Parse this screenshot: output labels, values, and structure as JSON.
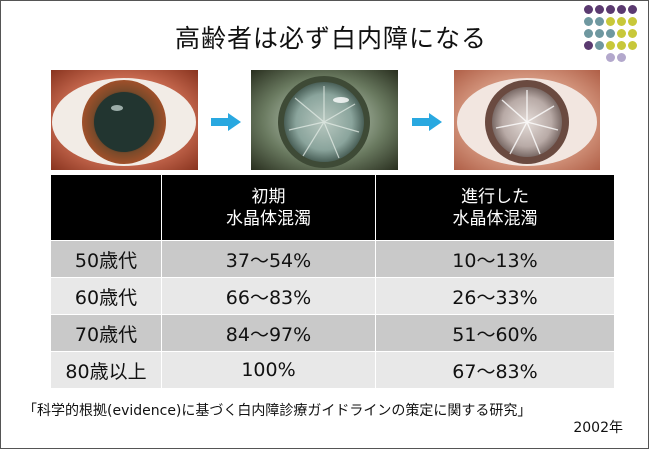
{
  "title": "高齢者は必ず白内障になる",
  "images": [
    {
      "name": "normal-eye-photo",
      "color": "#b5462a"
    },
    {
      "name": "early-cataract-eye-photo",
      "color": "#9ab0a8"
    },
    {
      "name": "advanced-cataract-eye-photo",
      "color": "#d0b8b0"
    }
  ],
  "arrow_color": "#29a8e0",
  "decor_dots": {
    "rows": [
      [
        "#5b3a70",
        "#5b3a70",
        "#5b3a70",
        "#5b3a70",
        "#5b3a70"
      ],
      [
        "#6f98a0",
        "#6f98a0",
        "#c8c83a",
        "#c8c83a",
        "#c8c83a"
      ],
      [
        "#6f98a0",
        "#6f98a0",
        "#6f98a0",
        "#c8c83a",
        "#c8c83a"
      ],
      [
        "#5b3a70",
        "#6f98a0",
        "#c8c83a",
        "#c8c83a",
        "#c8c83a"
      ],
      [
        "",
        "",
        "#b3a8cc",
        "#b3a8cc",
        ""
      ]
    ]
  },
  "table": {
    "headers": [
      {
        "lines": [
          "",
          ""
        ]
      },
      {
        "lines": [
          "初期",
          "水晶体混濁"
        ]
      },
      {
        "lines": [
          "進行した",
          "水晶体混濁"
        ]
      }
    ],
    "rows": [
      {
        "age": "50歳代",
        "early": "37〜54%",
        "advanced": "10〜13%"
      },
      {
        "age": "60歳代",
        "early": "66〜83%",
        "advanced": "26〜33%"
      },
      {
        "age": "70歳代",
        "early": "84〜97%",
        "advanced": "51〜60%"
      },
      {
        "age": "80歳以上",
        "early": "100%",
        "advanced": "67〜83%"
      }
    ]
  },
  "source": "「科学的根拠(evidence)に基づく白内障診療ガイドラインの策定に関する研究」",
  "year": "2002年"
}
